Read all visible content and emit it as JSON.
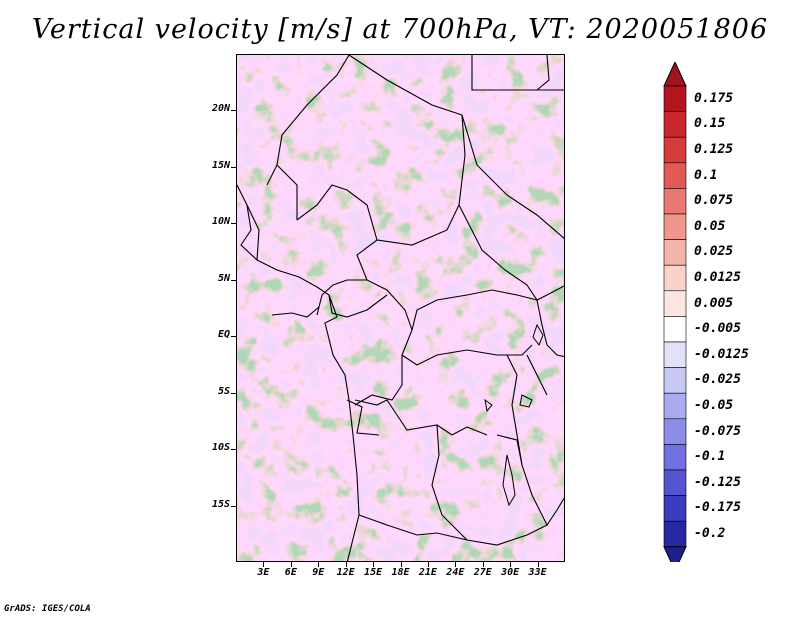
{
  "title": "Vertical velocity [m/s] at 700hPa, VT: 2020051806",
  "footer": "GrADS: IGES/COLA",
  "map": {
    "projection": "lat-lon",
    "lon_range": [
      0,
      36
    ],
    "lat_range": [
      -20,
      25
    ],
    "lat_ticks": [
      {
        "label": "20N",
        "value": 20
      },
      {
        "label": "15N",
        "value": 15
      },
      {
        "label": "10N",
        "value": 10
      },
      {
        "label": "5N",
        "value": 5
      },
      {
        "label": "EQ",
        "value": 0
      },
      {
        "label": "5S",
        "value": -5
      },
      {
        "label": "10S",
        "value": -10
      },
      {
        "label": "15S",
        "value": -15
      }
    ],
    "lon_ticks": [
      {
        "label": "3E",
        "value": 3
      },
      {
        "label": "6E",
        "value": 6
      },
      {
        "label": "9E",
        "value": 9
      },
      {
        "label": "12E",
        "value": 12
      },
      {
        "label": "15E",
        "value": 15
      },
      {
        "label": "18E",
        "value": 18
      },
      {
        "label": "21E",
        "value": 21
      },
      {
        "label": "24E",
        "value": 24
      },
      {
        "label": "27E",
        "value": 27
      },
      {
        "label": "30E",
        "value": 30
      },
      {
        "label": "33E",
        "value": 33
      }
    ]
  },
  "colorbar": {
    "levels": [
      {
        "label": "0.175",
        "color": "#b4141e"
      },
      {
        "label": "0.15",
        "color": "#c8282d"
      },
      {
        "label": "0.125",
        "color": "#d73c3c"
      },
      {
        "label": "0.1",
        "color": "#e15a55"
      },
      {
        "label": "0.075",
        "color": "#eb7870"
      },
      {
        "label": "0.05",
        "color": "#f0968c"
      },
      {
        "label": "0.025",
        "color": "#f5b4aa"
      },
      {
        "label": "0.0125",
        "color": "#fad2c8"
      },
      {
        "label": "0.005",
        "color": "#fde6e1"
      },
      {
        "label": "-0.005",
        "color": "#ffffff"
      },
      {
        "label": "-0.0125",
        "color": "#e1e1fa"
      },
      {
        "label": "-0.025",
        "color": "#c8c8f5"
      },
      {
        "label": "-0.05",
        "color": "#aaaaf0"
      },
      {
        "label": "-0.075",
        "color": "#8c8ceb"
      },
      {
        "label": "-0.1",
        "color": "#7070e1"
      },
      {
        "label": "-0.125",
        "color": "#5555d2"
      },
      {
        "label": "-0.175",
        "color": "#3c3cbe"
      },
      {
        "label": "-0.2",
        "color": "#2828a5"
      }
    ],
    "top_color": "#a0141e",
    "bottom_color": "#1e1e8c"
  }
}
